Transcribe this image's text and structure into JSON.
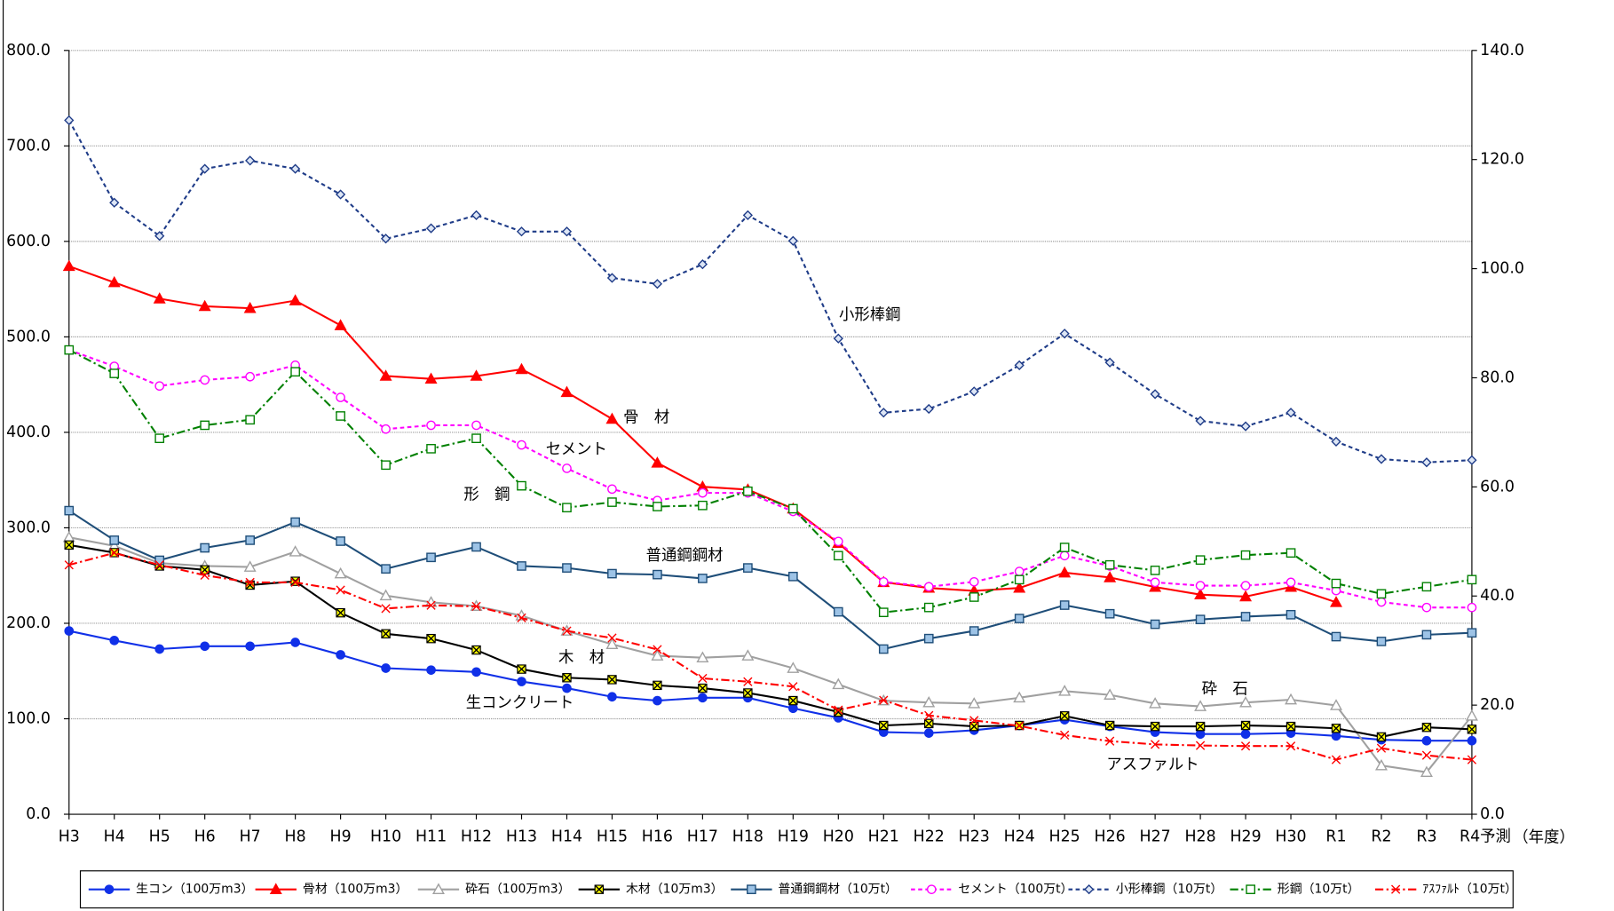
{
  "chart_data": {
    "type": "line",
    "categories": [
      "H3",
      "H4",
      "H5",
      "H6",
      "H7",
      "H8",
      "H9",
      "H10",
      "H11",
      "H12",
      "H13",
      "H14",
      "H15",
      "H16",
      "H17",
      "H18",
      "H19",
      "H20",
      "H21",
      "H22",
      "H23",
      "H24",
      "H25",
      "H26",
      "H27",
      "H28",
      "H29",
      "H30",
      "R1",
      "R2",
      "R3",
      "R4予測"
    ],
    "x_label": "（年度）",
    "ylim": [
      0,
      800
    ],
    "yticks": [
      {
        "value": 0,
        "label": "0.0"
      },
      {
        "value": 100,
        "label": "100.0"
      },
      {
        "value": 200,
        "label": "200.0"
      },
      {
        "value": 300,
        "label": "300.0"
      },
      {
        "value": 400,
        "label": "400.0"
      },
      {
        "value": 500,
        "label": "500.0"
      },
      {
        "value": 600,
        "label": "600.0"
      },
      {
        "value": 700,
        "label": "700.0"
      },
      {
        "value": 800,
        "label": "800.0"
      }
    ],
    "y2lim": [
      0,
      140
    ],
    "y2ticks": [
      {
        "value": 0,
        "label": "0.0"
      },
      {
        "value": 20,
        "label": "20.0"
      },
      {
        "value": 40,
        "label": "40.0"
      },
      {
        "value": 60,
        "label": "60.0"
      },
      {
        "value": 80,
        "label": "80.0"
      },
      {
        "value": 100,
        "label": "100.0"
      },
      {
        "value": 120,
        "label": "120.0"
      },
      {
        "value": 140,
        "label": "140.0"
      }
    ],
    "grid": true,
    "legend": "bottom",
    "series": [
      {
        "name": "生コン（100万m3）",
        "color": "#1030e8",
        "marker": "circle",
        "marker_fill": "#1030e8",
        "dash": "solid",
        "values": [
          192,
          182,
          173,
          176,
          176,
          180,
          167,
          153,
          151,
          149,
          139,
          132,
          123,
          119,
          122,
          122,
          111,
          101,
          86,
          85,
          88,
          93,
          99,
          92,
          86,
          84,
          84,
          85,
          82,
          78,
          77,
          77
        ]
      },
      {
        "name": "骨材（100万m3）",
        "color": "#ff0000",
        "marker": "triangle",
        "marker_fill": "#ff0000",
        "dash": "solid",
        "values": [
          574,
          557,
          540,
          532,
          530,
          538,
          512,
          459,
          456,
          459,
          466,
          442,
          414,
          368,
          343,
          340,
          320,
          284,
          243,
          237,
          234,
          237,
          253,
          248,
          238,
          230,
          228,
          238,
          222,
          null,
          null,
          null
        ]
      },
      {
        "name": "砕石（100万m3）",
        "color": "#a0a0a0",
        "marker": "triangle",
        "marker_fill": "#ffffff",
        "dash": "solid",
        "values": [
          290,
          281,
          263,
          260,
          259,
          275,
          252,
          229,
          222,
          218,
          208,
          192,
          178,
          166,
          164,
          166,
          153,
          136,
          119,
          117,
          116,
          122,
          129,
          125,
          116,
          113,
          117,
          120,
          114,
          51,
          44,
          103
        ]
      },
      {
        "name": "木材（10万m3）",
        "color": "#000000",
        "marker": "xsquare",
        "marker_fill": "#ffff00",
        "dash": "solid",
        "values": [
          282,
          274,
          260,
          256,
          240,
          244,
          211,
          189,
          184,
          172,
          152,
          143,
          141,
          135,
          132,
          127,
          119,
          107,
          93,
          95,
          92,
          93,
          103,
          93,
          92,
          92,
          93,
          92,
          90,
          81,
          91,
          89
        ]
      },
      {
        "name": "普通鋼鋼材（10万t）",
        "color": "#1f4e79",
        "marker": "square",
        "marker_fill": "#9dc3e6",
        "dash": "solid",
        "values": [
          318,
          287,
          266,
          279,
          287,
          306,
          286,
          257,
          269,
          280,
          260,
          258,
          252,
          251,
          247,
          258,
          249,
          212,
          173,
          184,
          192,
          205,
          219,
          210,
          199,
          204,
          207,
          209,
          186,
          181,
          188,
          190
        ]
      },
      {
        "name": "セメント（100万t）",
        "color": "#ff00ff",
        "marker": "circle",
        "marker_fill": "#ffffff",
        "dash": "4,3",
        "axis": "y2",
        "values": [
          85.1,
          82.1,
          78.5,
          79.6,
          80.2,
          82.3,
          76.4,
          70.6,
          71.3,
          71.3,
          67.7,
          63.4,
          59.6,
          57.5,
          58.9,
          58.9,
          55.5,
          50.0,
          42.6,
          41.7,
          42.6,
          44.5,
          47.4,
          45.5,
          42.5,
          41.9,
          41.9,
          42.5,
          41.0,
          38.9,
          37.9,
          37.9
        ]
      },
      {
        "name": "小形棒鋼（10万t）",
        "color": "#1f3c88",
        "marker": "diamond",
        "marker_fill": "#dde6f5",
        "dash": "4,3",
        "axis": "y2",
        "values": [
          127.2,
          112.1,
          106.0,
          118.3,
          119.8,
          118.3,
          113.6,
          105.5,
          107.4,
          109.8,
          106.8,
          106.8,
          98.3,
          97.2,
          100.8,
          109.8,
          105.1,
          87.2,
          73.6,
          74.3,
          77.5,
          82.3,
          88.1,
          82.8,
          77.0,
          72.1,
          71.1,
          73.6,
          68.3,
          65.1,
          64.5,
          64.9
        ]
      },
      {
        "name": "形鋼（10万t）",
        "color": "#008000",
        "marker": "square",
        "marker_fill": "#ffffff",
        "dash": "8,3,2,3",
        "axis": "y2",
        "values": [
          85.1,
          80.8,
          68.9,
          71.3,
          72.3,
          81.1,
          73.0,
          64.0,
          67.0,
          68.9,
          60.2,
          56.2,
          57.2,
          56.4,
          56.6,
          59.2,
          56.0,
          47.4,
          37.0,
          37.9,
          39.8,
          43.0,
          48.9,
          45.7,
          44.7,
          46.6,
          47.5,
          47.9,
          42.3,
          40.4,
          41.7,
          43.0
        ]
      },
      {
        "name": "ｱｽﾌｧﾙﾄ（10万t）",
        "color": "#ff0000",
        "marker": "x",
        "marker_fill": "none",
        "dash": "8,3,2,3",
        "axis": "y2",
        "values": [
          45.7,
          47.9,
          45.7,
          43.8,
          42.5,
          42.5,
          41.1,
          37.7,
          38.3,
          38.1,
          36.0,
          33.6,
          32.3,
          30.2,
          24.9,
          24.3,
          23.4,
          19.1,
          20.9,
          18.1,
          17.2,
          16.2,
          14.5,
          13.4,
          12.8,
          12.6,
          12.5,
          12.5,
          10.0,
          12.1,
          10.8,
          10.0
        ]
      }
    ],
    "annotations": [
      "小形棒鋼",
      "骨　材",
      "セメント",
      "形　鋼",
      "普通鋼鋼材",
      "木　材",
      "生コンクリート",
      "砕　石",
      "アスファルト"
    ]
  }
}
